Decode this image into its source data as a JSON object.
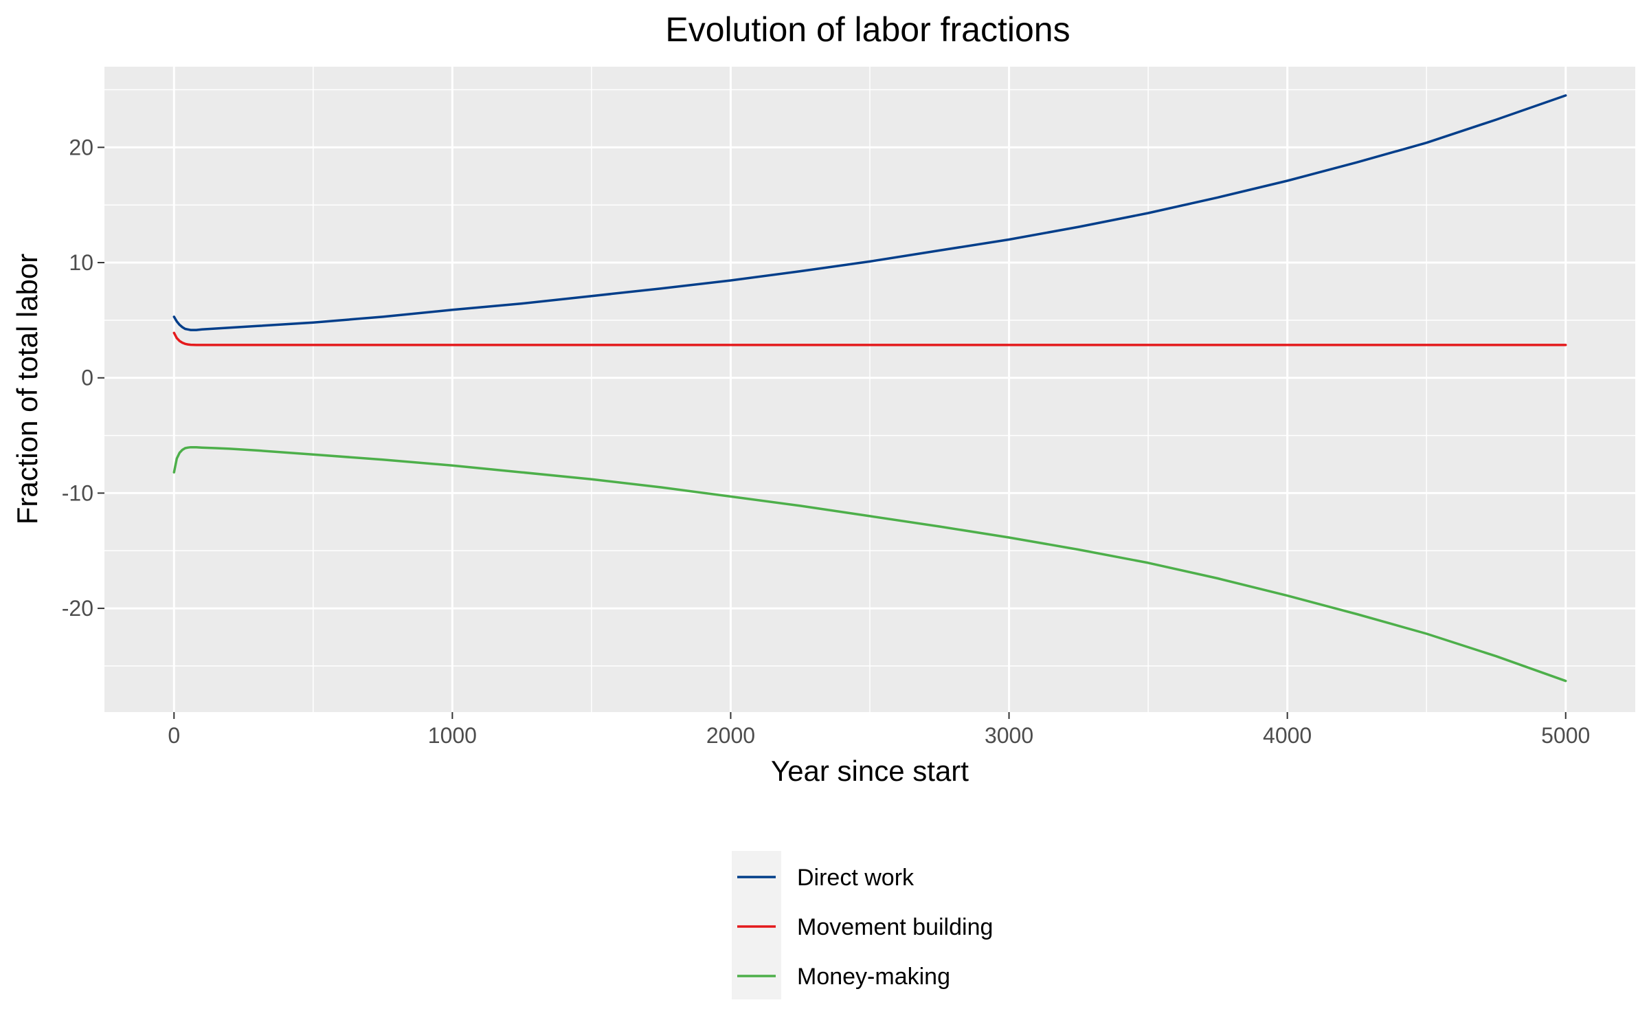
{
  "chart_data": {
    "type": "line",
    "title": "Evolution of labor fractions",
    "xlabel": "Year since start",
    "ylabel": "Fraction of total labor",
    "xlim": [
      -250,
      5250
    ],
    "ylim": [
      -29,
      27
    ],
    "x_ticks": [
      0,
      1000,
      2000,
      3000,
      4000,
      5000
    ],
    "x_tick_labels": [
      "0",
      "1000",
      "2000",
      "3000",
      "4000",
      "5000"
    ],
    "y_ticks": [
      -20,
      -10,
      0,
      10,
      20
    ],
    "y_tick_labels": [
      "-20",
      "-10",
      "0",
      "10",
      "20"
    ],
    "grid": true,
    "legend_position": "bottom",
    "background": "#ebebeb",
    "x": [
      0,
      10,
      20,
      30,
      40,
      50,
      60,
      80,
      100,
      150,
      200,
      300,
      500,
      750,
      1000,
      1250,
      1500,
      1750,
      2000,
      2250,
      2500,
      2750,
      3000,
      3250,
      3500,
      3750,
      4000,
      4250,
      4500,
      4750,
      5000
    ],
    "series": [
      {
        "name": "Direct work",
        "color": "#023e8a",
        "values": [
          5.3,
          4.9,
          4.6,
          4.4,
          4.25,
          4.2,
          4.15,
          4.15,
          4.2,
          4.28,
          4.35,
          4.5,
          4.8,
          5.3,
          5.9,
          6.45,
          7.1,
          7.75,
          8.45,
          9.25,
          10.1,
          11.05,
          12.0,
          13.1,
          14.3,
          15.65,
          17.1,
          18.7,
          20.4,
          22.4,
          24.5
        ]
      },
      {
        "name": "Movement building",
        "color": "#e41a1c",
        "values": [
          3.9,
          3.45,
          3.2,
          3.05,
          2.95,
          2.9,
          2.87,
          2.85,
          2.85,
          2.85,
          2.85,
          2.85,
          2.85,
          2.85,
          2.85,
          2.85,
          2.85,
          2.85,
          2.85,
          2.85,
          2.85,
          2.85,
          2.85,
          2.85,
          2.85,
          2.85,
          2.85,
          2.85,
          2.85,
          2.85,
          2.85
        ]
      },
      {
        "name": "Money-making",
        "color": "#4daf4a",
        "values": [
          -8.2,
          -7.0,
          -6.5,
          -6.25,
          -6.1,
          -6.05,
          -6.02,
          -6.02,
          -6.05,
          -6.1,
          -6.15,
          -6.3,
          -6.65,
          -7.1,
          -7.6,
          -8.2,
          -8.8,
          -9.5,
          -10.3,
          -11.1,
          -12.0,
          -12.9,
          -13.85,
          -14.9,
          -16.05,
          -17.4,
          -18.9,
          -20.5,
          -22.2,
          -24.15,
          -26.3
        ]
      }
    ]
  }
}
